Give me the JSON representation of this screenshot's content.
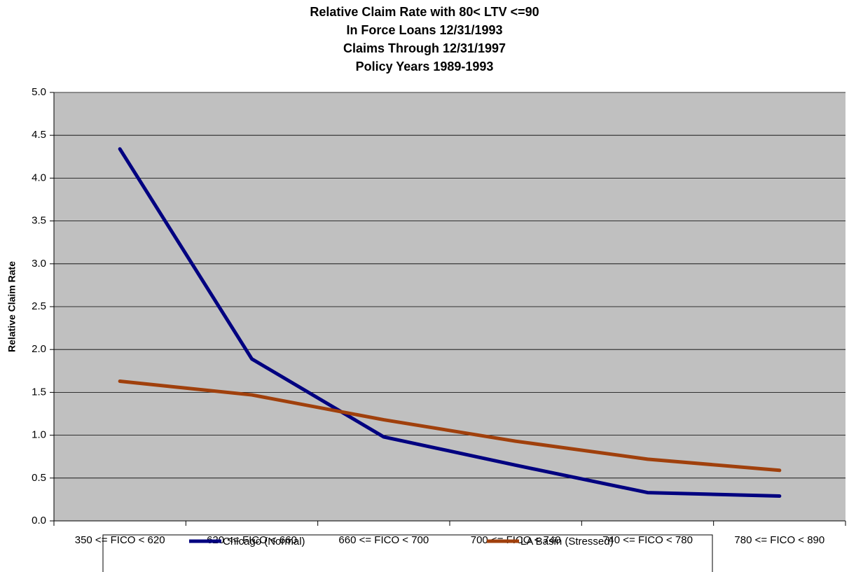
{
  "chart_data": {
    "type": "line",
    "title": [
      "Relative Claim Rate with 80< LTV <=90",
      "In Force Loans 12/31/1993",
      "Claims Through 12/31/1997",
      "Policy Years 1989-1993"
    ],
    "y_label": "Relative Claim Rate",
    "categories": [
      "350 <= FICO < 620",
      "620 <= FICO < 660",
      "660 <= FICO < 700",
      "700 <= FICO < 740",
      "740 <= FICO < 780",
      "780 <= FICO < 890"
    ],
    "series": [
      {
        "name": "Chicago (Normal)",
        "color": "#000080",
        "values": [
          4.34,
          1.89,
          0.98,
          0.65,
          0.33,
          0.29
        ]
      },
      {
        "name": "LA Basin (Stressed)",
        "color": "#a0400c",
        "values": [
          1.63,
          1.47,
          1.18,
          0.93,
          0.72,
          0.59
        ]
      }
    ],
    "ylim": [
      0,
      5
    ],
    "yticks": [
      {
        "value": 0,
        "label": "0.0"
      },
      0.5,
      {
        "value": 1,
        "label": "1.0"
      },
      1.5,
      {
        "value": 2,
        "label": "2.0"
      },
      2.5,
      {
        "value": 3,
        "label": "3.0"
      },
      3.5,
      {
        "value": 4,
        "label": "4.0"
      },
      4.5,
      {
        "value": 5,
        "label": "5.0"
      }
    ],
    "grid": true,
    "legend": "bottom"
  }
}
